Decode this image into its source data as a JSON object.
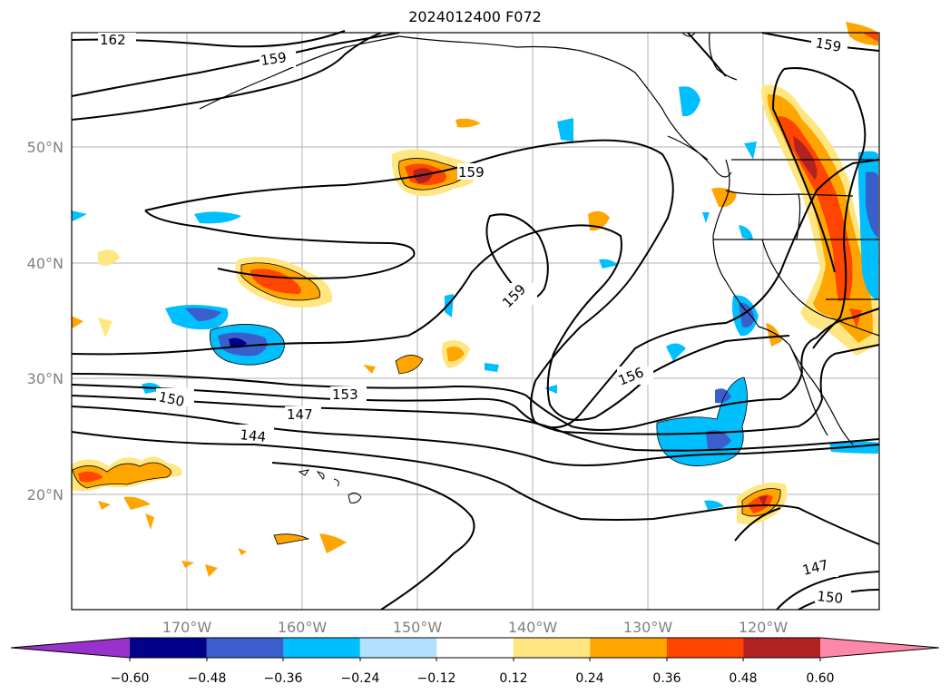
{
  "title": "2024012400 F072",
  "map": {
    "lat_labels": [
      {
        "text": "50°N",
        "lat": 50
      },
      {
        "text": "40°N",
        "lat": 40
      },
      {
        "text": "30°N",
        "lat": 30
      },
      {
        "text": "20°N",
        "lat": 20
      }
    ],
    "lon_labels": [
      {
        "text": "170°W",
        "lon": -170
      },
      {
        "text": "160°W",
        "lon": -160
      },
      {
        "text": "150°W",
        "lon": -150
      },
      {
        "text": "140°W",
        "lon": -140
      },
      {
        "text": "130°W",
        "lon": -130
      },
      {
        "text": "120°W",
        "lon": -120
      }
    ],
    "contour_labels": [
      "162",
      "159",
      "159",
      "159",
      "159",
      "156",
      "153",
      "150",
      "147",
      "144",
      "147",
      "150"
    ],
    "grid": true
  },
  "colorbar": {
    "ticks": [
      "−0.60",
      "−0.48",
      "−0.36",
      "−0.24",
      "−0.12",
      "0.12",
      "0.24",
      "0.36",
      "0.48",
      "0.60"
    ],
    "colors": [
      "#9932cc",
      "#00008b",
      "#3a5fcd",
      "#00bfff",
      "#b0e2ff",
      "#ffffff",
      "#ffe680",
      "#ffa500",
      "#ff4500",
      "#b22222",
      "#ff88aa"
    ]
  }
}
